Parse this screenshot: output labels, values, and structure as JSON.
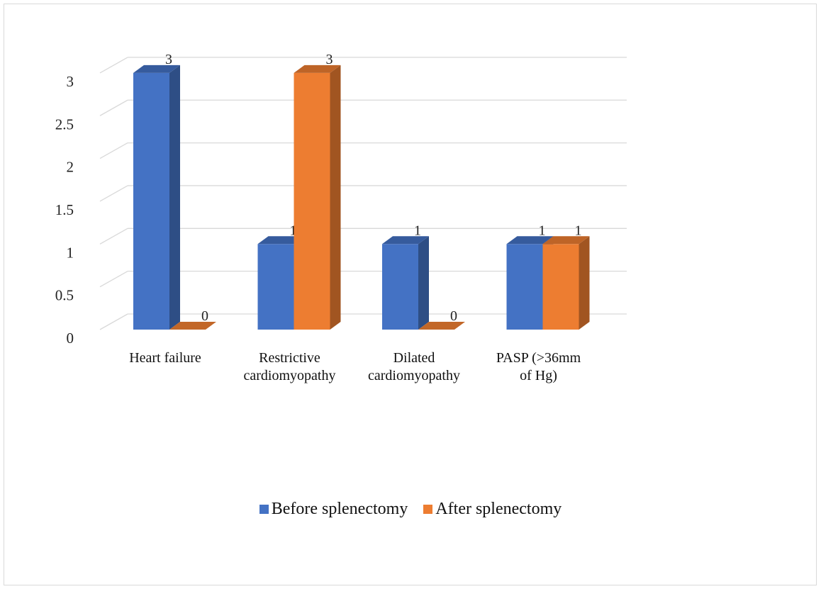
{
  "chart_data": {
    "type": "bar",
    "style": "3d-clustered-column",
    "categories": [
      [
        "Heart failure"
      ],
      [
        "Restrictive",
        "cardiomyopathy"
      ],
      [
        "Dilated",
        "cardiomyopathy"
      ],
      [
        "PASP (>36mm",
        "of Hg)"
      ]
    ],
    "series": [
      {
        "name": "Before splenectomy",
        "values": [
          3,
          1,
          1,
          1
        ],
        "color": "#4472C4"
      },
      {
        "name": "After splenectomy",
        "values": [
          0,
          3,
          0,
          1
        ],
        "color": "#ED7D31"
      }
    ],
    "y_ticks": [
      "0",
      "0.5",
      "1",
      "1.5",
      "2",
      "2.5",
      "3"
    ],
    "ylim": [
      0,
      3
    ],
    "grid": true,
    "legend_position": "bottom"
  }
}
